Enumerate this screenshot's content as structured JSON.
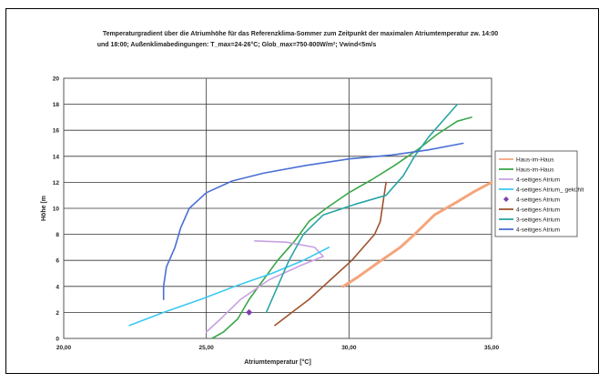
{
  "chart_data": {
    "type": "line",
    "title_lines": [
      "Temperaturgradient über die Atriumhöhe für das Referenzklima-Sommer zum Zeitpunkt der maximalen Atriumtemperatur zw. 14:00",
      "und 18:00; Außenklimabedingungen: T_max=24-26°C; Glob_max=750-800W/m²; Vwind<5m/s"
    ],
    "xlabel": "Atriumtemperatur [°C]",
    "ylabel": "Höhe [m",
    "xlim": [
      20,
      35
    ],
    "ylim": [
      0,
      20
    ],
    "x_ticks": [
      "20,00",
      "25,00",
      "30,00",
      "35,00"
    ],
    "y_ticks": [
      "0",
      "2",
      "4",
      "6",
      "8",
      "10",
      "12",
      "14",
      "16",
      "18",
      "20"
    ],
    "grid": "vertical at 25 and 30, horizontal every 2",
    "legend_position": "right",
    "series": [
      {
        "name": "Haus-im-Haus",
        "color": "#f4a57c",
        "marker": "none",
        "points": [
          [
            29.8,
            4
          ],
          [
            30.3,
            4.7
          ],
          [
            31,
            5.8
          ],
          [
            31.8,
            7
          ],
          [
            32.3,
            8
          ],
          [
            33,
            9.5
          ],
          [
            33.8,
            10.5
          ],
          [
            34.4,
            11.3
          ],
          [
            35,
            12
          ]
        ]
      },
      {
        "name": "Haus-im-Haus",
        "color": "#3aa64a",
        "marker": "none",
        "points": [
          [
            25.2,
            0
          ],
          [
            25.6,
            0.5
          ],
          [
            26.1,
            1.5
          ],
          [
            26.5,
            3
          ],
          [
            27,
            4.5
          ],
          [
            27.5,
            6
          ],
          [
            28.1,
            7.5
          ],
          [
            28.6,
            9
          ],
          [
            29.2,
            10
          ],
          [
            30,
            11.2
          ],
          [
            30.8,
            12.2
          ],
          [
            31.6,
            13.3
          ],
          [
            32.4,
            14.5
          ],
          [
            33.1,
            15.7
          ],
          [
            33.8,
            16.7
          ],
          [
            34.3,
            17
          ]
        ]
      },
      {
        "name": "4-seitiges Atrium",
        "color": "#c8a0e0",
        "marker": "none",
        "points": [
          [
            25,
            0.5
          ],
          [
            25.5,
            1.5
          ],
          [
            26.2,
            3
          ],
          [
            27.2,
            4.5
          ],
          [
            28.3,
            5.6
          ],
          [
            29.1,
            6.3
          ],
          [
            28.8,
            7
          ],
          [
            27.8,
            7.4
          ],
          [
            26.7,
            7.5
          ]
        ]
      },
      {
        "name": "4-seitiges Atrium_ gekühlt",
        "color": "#3cc8f0",
        "marker": "none",
        "points": [
          [
            22.3,
            1
          ],
          [
            23.5,
            2
          ],
          [
            24.8,
            3
          ],
          [
            26,
            4
          ],
          [
            27.3,
            5
          ],
          [
            28.4,
            6
          ],
          [
            29.3,
            7
          ]
        ]
      },
      {
        "name": "4-seitiges Atrium",
        "color": "#7a40b0",
        "marker": "diamond",
        "points": [
          [
            26.5,
            2
          ]
        ]
      },
      {
        "name": "4-seitiges Atrium",
        "color": "#a0522d",
        "marker": "none",
        "points": [
          [
            27.4,
            1
          ],
          [
            28,
            2
          ],
          [
            28.6,
            3
          ],
          [
            29.1,
            4
          ],
          [
            29.6,
            5
          ],
          [
            30.1,
            6
          ],
          [
            30.5,
            7
          ],
          [
            30.9,
            8
          ],
          [
            31.1,
            9
          ],
          [
            31.2,
            10.5
          ],
          [
            31.3,
            12
          ]
        ]
      },
      {
        "name": "3-seitiges Atrium",
        "color": "#2aa5a5",
        "marker": "none",
        "points": [
          [
            27.1,
            2
          ],
          [
            27.5,
            4
          ],
          [
            27.9,
            6
          ],
          [
            28.4,
            8
          ],
          [
            29.1,
            9.5
          ],
          [
            30.2,
            10.3
          ],
          [
            31.3,
            11
          ],
          [
            31.9,
            12.5
          ],
          [
            32.3,
            14
          ],
          [
            32.8,
            15.5
          ],
          [
            33.4,
            17
          ],
          [
            33.8,
            18
          ]
        ]
      },
      {
        "name": "4-seitiges Atrium",
        "color": "#4a6fd4",
        "marker": "none",
        "points": [
          [
            23.5,
            3
          ],
          [
            23.5,
            4
          ],
          [
            23.6,
            5.5
          ],
          [
            23.9,
            7
          ],
          [
            24.1,
            8.5
          ],
          [
            24.4,
            10
          ],
          [
            25,
            11.2
          ],
          [
            25.9,
            12.1
          ],
          [
            27,
            12.7
          ],
          [
            28.5,
            13.3
          ],
          [
            30,
            13.8
          ],
          [
            31.5,
            14.1
          ],
          [
            32.8,
            14.5
          ],
          [
            34,
            15
          ]
        ]
      }
    ]
  }
}
